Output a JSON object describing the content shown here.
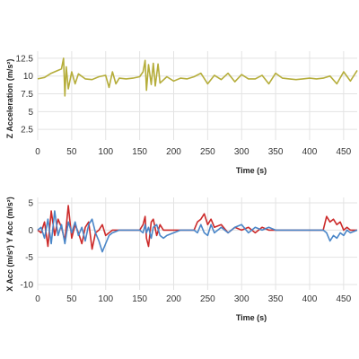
{
  "chart_data": [
    {
      "type": "line",
      "title": "",
      "xlabel": "Time (s)",
      "ylabel": "Z Acceleration (m/s²)",
      "xlim": [
        0,
        470
      ],
      "ylim": [
        1.0,
        13.5
      ],
      "xticks": [
        0,
        50,
        100,
        150,
        200,
        250,
        300,
        350,
        400,
        450
      ],
      "yticks": [
        2.5,
        5.0,
        7.5,
        10.0,
        12.5
      ],
      "ytick_labels": [
        "2.5",
        "5",
        "7.5",
        "10",
        "12.5"
      ],
      "grid": true,
      "series": [
        {
          "color": "#b5ad3a",
          "baseline": 9.6,
          "x": [
            0,
            10,
            20,
            30,
            35,
            38,
            40,
            42,
            45,
            50,
            55,
            60,
            70,
            80,
            90,
            100,
            105,
            110,
            115,
            120,
            130,
            140,
            150,
            155,
            158,
            160,
            163,
            167,
            170,
            173,
            177,
            180,
            190,
            200,
            210,
            220,
            230,
            240,
            250,
            260,
            270,
            280,
            290,
            300,
            310,
            320,
            330,
            340,
            350,
            360,
            370,
            380,
            390,
            400,
            410,
            420,
            430,
            440,
            450,
            460,
            470
          ],
          "y": [
            9.6,
            9.8,
            10.4,
            10.8,
            11.0,
            12.5,
            7.2,
            11.3,
            8.2,
            10.6,
            8.9,
            10.3,
            9.6,
            9.5,
            9.9,
            10.1,
            8.4,
            10.6,
            8.9,
            9.7,
            9.6,
            9.7,
            9.9,
            10.6,
            12.2,
            8.0,
            11.6,
            8.8,
            11.8,
            8.6,
            11.7,
            9.0,
            9.9,
            9.3,
            9.7,
            9.6,
            9.9,
            10.4,
            8.9,
            10.1,
            9.5,
            10.4,
            9.2,
            10.2,
            9.6,
            9.6,
            10.1,
            8.9,
            10.4,
            9.7,
            9.6,
            9.5,
            9.6,
            9.7,
            9.6,
            9.7,
            10.0,
            8.9,
            10.6,
            9.3,
            10.8
          ]
        }
      ]
    },
    {
      "type": "line",
      "title": "",
      "xlabel": "Time (s)",
      "ylabel": "X Acc (m/s²)  Y Acc (m/s²)",
      "xlim": [
        0,
        470
      ],
      "ylim": [
        -11,
        6
      ],
      "xticks": [
        0,
        50,
        100,
        150,
        200,
        250,
        300,
        350,
        400,
        450
      ],
      "yticks": [
        -10,
        -5,
        0,
        5
      ],
      "ytick_labels": [
        "-10",
        "-5",
        "0",
        "5"
      ],
      "grid": true,
      "series": [
        {
          "name": "",
          "color": "#cc2a2a",
          "x": [
            0,
            5,
            10,
            15,
            20,
            25,
            30,
            35,
            40,
            45,
            50,
            55,
            60,
            65,
            70,
            75,
            80,
            85,
            90,
            95,
            100,
            110,
            120,
            130,
            140,
            150,
            155,
            158,
            160,
            163,
            167,
            170,
            175,
            180,
            185,
            190,
            200,
            210,
            220,
            230,
            235,
            240,
            245,
            250,
            255,
            260,
            270,
            280,
            290,
            300,
            310,
            320,
            330,
            340,
            350,
            360,
            370,
            380,
            390,
            400,
            410,
            420,
            425,
            430,
            435,
            440,
            445,
            450,
            455,
            460,
            470
          ],
          "y": [
            0,
            -0.5,
            1.5,
            -3.0,
            3.5,
            -1.0,
            2.0,
            0.5,
            -2.0,
            4.5,
            -1.5,
            1.0,
            -0.5,
            -2.5,
            0.5,
            1.5,
            -3.5,
            -0.5,
            0,
            1.0,
            -1.0,
            0,
            0,
            0,
            0,
            0,
            1.0,
            2.5,
            -1.5,
            -3.0,
            1.5,
            2.0,
            -1.0,
            1.0,
            0,
            0,
            0,
            0,
            0,
            0,
            1.5,
            2.0,
            3.0,
            1.0,
            2.0,
            0.5,
            1.0,
            -0.5,
            0.5,
            0,
            0.5,
            -0.5,
            0.5,
            0,
            0,
            0,
            0,
            0,
            0,
            0,
            0,
            0,
            2.5,
            1.5,
            2.0,
            1.0,
            1.5,
            0,
            0.5,
            0,
            0
          ]
        },
        {
          "name": "",
          "color": "#4a86c8",
          "x": [
            0,
            5,
            10,
            15,
            20,
            25,
            30,
            35,
            40,
            45,
            50,
            55,
            60,
            65,
            70,
            75,
            80,
            85,
            90,
            95,
            100,
            105,
            110,
            120,
            130,
            140,
            150,
            155,
            158,
            160,
            163,
            167,
            170,
            175,
            180,
            185,
            190,
            200,
            210,
            220,
            230,
            235,
            240,
            245,
            250,
            255,
            260,
            270,
            280,
            290,
            300,
            310,
            320,
            330,
            340,
            350,
            360,
            370,
            380,
            390,
            400,
            410,
            420,
            425,
            430,
            435,
            440,
            445,
            450,
            455,
            460,
            470
          ],
          "y": [
            0,
            0.5,
            -1.5,
            2.0,
            -2.5,
            3.5,
            -1.0,
            1.0,
            -2.5,
            1.5,
            -0.5,
            1.5,
            -1.0,
            0.5,
            -2.0,
            1.0,
            2.0,
            -0.5,
            -2.0,
            -4.0,
            -2.5,
            -1.0,
            -0.5,
            0,
            0,
            0,
            0,
            -0.5,
            1.0,
            -0.5,
            0.5,
            -1.5,
            0.5,
            1.0,
            -1.0,
            -1.5,
            -1.0,
            -0.5,
            0,
            0,
            0,
            -0.5,
            1.0,
            -0.5,
            -1.0,
            1.0,
            -0.5,
            0.5,
            -0.5,
            0.5,
            1.0,
            -0.5,
            0.5,
            0,
            0.5,
            0,
            0,
            0,
            0,
            0,
            0,
            0,
            0,
            -0.5,
            -2.0,
            -1.0,
            -1.5,
            -0.5,
            -1.0,
            0,
            -0.5,
            0
          ]
        }
      ]
    }
  ]
}
